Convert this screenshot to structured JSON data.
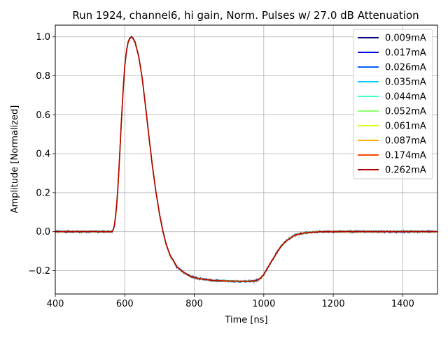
{
  "chart_data": {
    "type": "line",
    "title": "Run 1924, channel6, hi gain, Norm. Pulses w/ 27.0 dB Attenuation",
    "xlabel": "Time [ns]",
    "ylabel": "Amplitude [Normalized]",
    "xlim": [
      400,
      1500
    ],
    "ylim": [
      -0.32,
      1.06
    ],
    "xticks": [
      400,
      600,
      800,
      1000,
      1200,
      1400
    ],
    "yticks": [
      -0.2,
      0.0,
      0.2,
      0.4,
      0.6,
      0.8,
      1.0
    ],
    "xtick_labels": [
      "400",
      "600",
      "800",
      "1000",
      "1200",
      "1400"
    ],
    "ytick_labels": [
      "−0.2",
      "0.0",
      "0.2",
      "0.4",
      "0.6",
      "0.8",
      "1.0"
    ],
    "grid": true,
    "legend_position": "top-right",
    "pulse_shape": {
      "x": [
        400,
        565,
        570,
        575,
        580,
        585,
        590,
        595,
        600,
        605,
        610,
        615,
        620,
        625,
        630,
        640,
        650,
        660,
        670,
        680,
        690,
        700,
        710,
        720,
        730,
        750,
        770,
        790,
        810,
        830,
        850,
        870,
        890,
        910,
        930,
        950,
        970,
        980,
        990,
        1000,
        1010,
        1020,
        1030,
        1040,
        1050,
        1060,
        1070,
        1080,
        1090,
        1100,
        1120,
        1140,
        1160,
        1180,
        1200,
        1250,
        1300,
        1350,
        1400,
        1450,
        1500
      ],
      "y": [
        0.0,
        0.0,
        0.03,
        0.1,
        0.22,
        0.38,
        0.56,
        0.72,
        0.85,
        0.93,
        0.975,
        0.995,
        1.0,
        0.99,
        0.97,
        0.9,
        0.79,
        0.64,
        0.48,
        0.33,
        0.2,
        0.09,
        0.0,
        -0.07,
        -0.12,
        -0.18,
        -0.21,
        -0.23,
        -0.24,
        -0.245,
        -0.25,
        -0.252,
        -0.253,
        -0.254,
        -0.255,
        -0.255,
        -0.254,
        -0.25,
        -0.24,
        -0.22,
        -0.19,
        -0.16,
        -0.13,
        -0.1,
        -0.075,
        -0.055,
        -0.04,
        -0.028,
        -0.018,
        -0.012,
        -0.006,
        -0.003,
        -0.001,
        0.0,
        0.0,
        0.0,
        0.0,
        0.0,
        0.0,
        0.0,
        0.0
      ]
    },
    "series": [
      {
        "name": "0.009mA",
        "color": "#00007f"
      },
      {
        "name": "0.017mA",
        "color": "#0000e8"
      },
      {
        "name": "0.026mA",
        "color": "#0060ff"
      },
      {
        "name": "0.035mA",
        "color": "#00c8ff"
      },
      {
        "name": "0.044mA",
        "color": "#40ffc0"
      },
      {
        "name": "0.052mA",
        "color": "#8cff6c"
      },
      {
        "name": "0.061mA",
        "color": "#d8ff20"
      },
      {
        "name": "0.087mA",
        "color": "#ffb000"
      },
      {
        "name": "0.174mA",
        "color": "#ff4800"
      },
      {
        "name": "0.262mA",
        "color": "#b00000"
      }
    ]
  }
}
